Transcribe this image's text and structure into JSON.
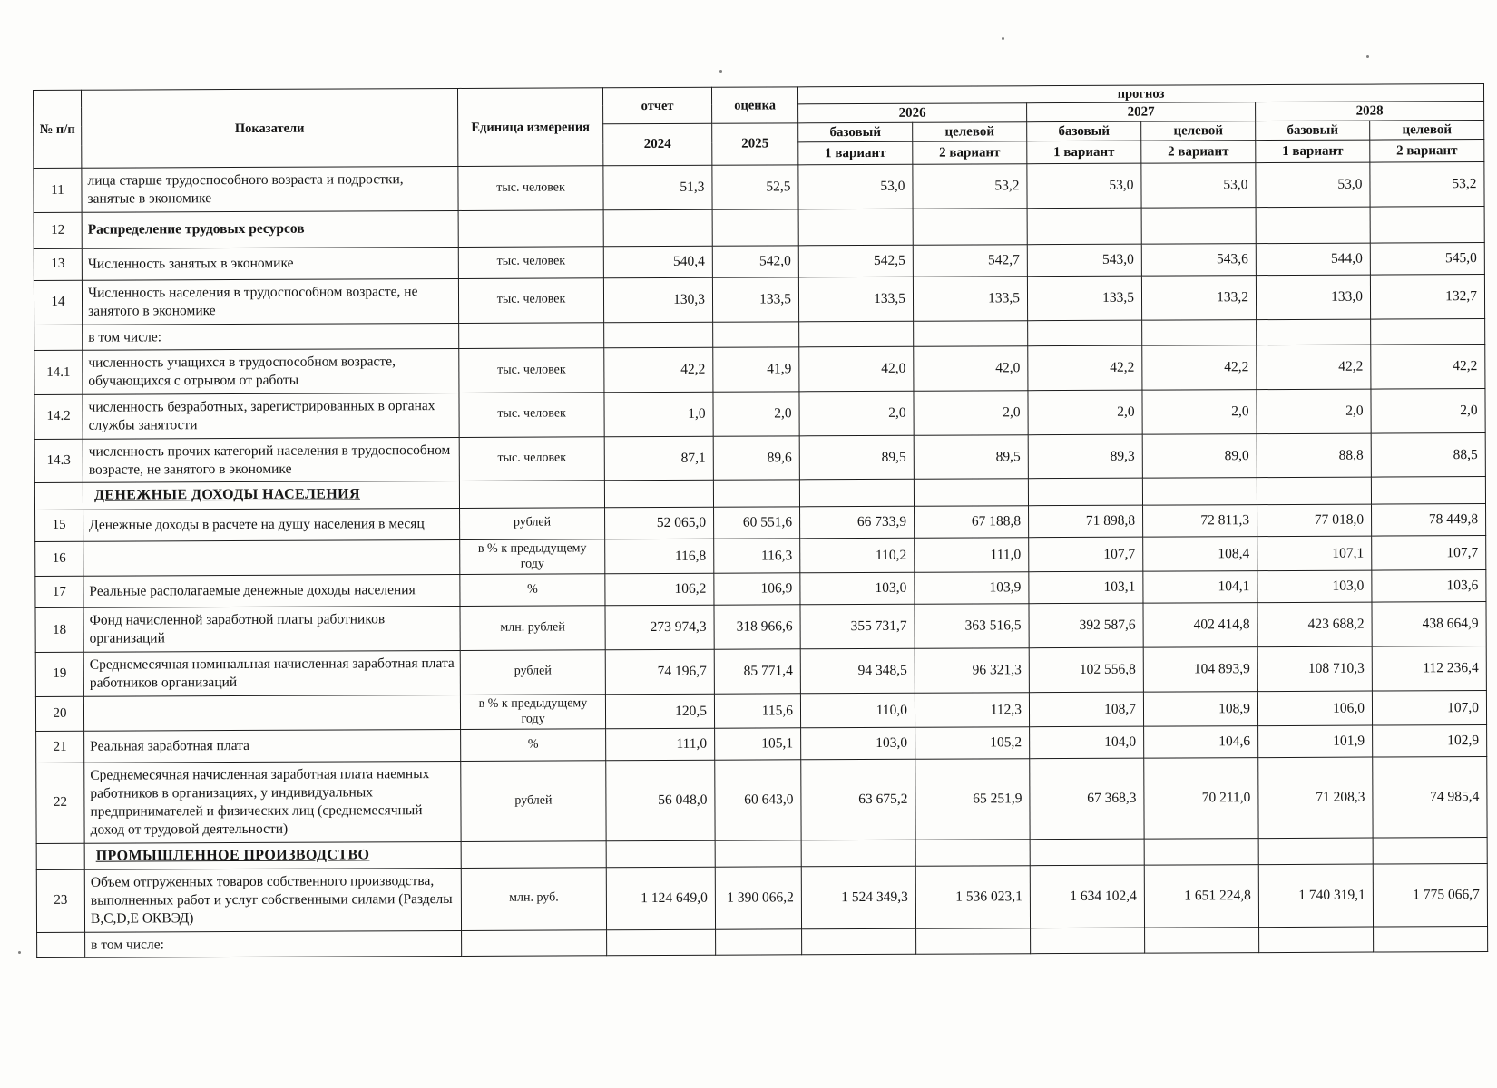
{
  "colors": {
    "border": "#1c1c1c",
    "text": "#161616",
    "paper": "#fdfdfb"
  },
  "table": {
    "header": {
      "num": "№ п/п",
      "indicators": "Показатели",
      "unit": "Единица измерения",
      "report": "отчет",
      "estimate": "оценка",
      "year_report": "2024",
      "year_estimate": "2025",
      "forecast": "прогноз",
      "year1": "2026",
      "year2": "2027",
      "year3": "2028",
      "base": "базовый",
      "target": "целевой",
      "v1": "1 вариант",
      "v2": "2 вариант"
    },
    "rows": [
      {
        "num": "11",
        "type": "data",
        "label": "лица старше трудоспособного возраста и подростки, занятые в экономике",
        "unit": "тыс. человек",
        "values": [
          "51,3",
          "52,5",
          "53,0",
          "53,2",
          "53,0",
          "53,0",
          "53,0",
          "53,2"
        ]
      },
      {
        "num": "12",
        "type": "group",
        "label": "Распределение трудовых ресурсов",
        "unit": "",
        "values": []
      },
      {
        "num": "13",
        "type": "data",
        "label": "Численность занятых в экономике",
        "unit": "тыс. человек",
        "values": [
          "540,4",
          "542,0",
          "542,5",
          "542,7",
          "543,0",
          "543,6",
          "544,0",
          "545,0"
        ]
      },
      {
        "num": "14",
        "type": "data",
        "label": "Численность населения в трудоспособном возрасте, не занятого в экономике",
        "unit": "тыс. человек",
        "values": [
          "130,3",
          "133,5",
          "133,5",
          "133,5",
          "133,5",
          "133,2",
          "133,0",
          "132,7"
        ]
      },
      {
        "num": "",
        "type": "note",
        "label": "в том числе:",
        "unit": "",
        "values": []
      },
      {
        "num": "14.1",
        "type": "data",
        "label": "численность учащихся в трудоспособном возрасте, обучающихся с отрывом от работы",
        "unit": "тыс. человек",
        "values": [
          "42,2",
          "41,9",
          "42,0",
          "42,0",
          "42,2",
          "42,2",
          "42,2",
          "42,2"
        ]
      },
      {
        "num": "14.2",
        "type": "data",
        "label": "численность безработных, зарегистрированных в органах службы занятости",
        "unit": "тыс. человек",
        "values": [
          "1,0",
          "2,0",
          "2,0",
          "2,0",
          "2,0",
          "2,0",
          "2,0",
          "2,0"
        ]
      },
      {
        "num": "14.3",
        "type": "data",
        "label": "численность прочих категорий населения в трудоспособном возрасте, не занятого в экономике",
        "unit": "тыс. человек",
        "values": [
          "87,1",
          "89,6",
          "89,5",
          "89,5",
          "89,3",
          "89,0",
          "88,8",
          "88,5"
        ]
      },
      {
        "num": "",
        "type": "section",
        "label": "ДЕНЕЖНЫЕ ДОХОДЫ НАСЕЛЕНИЯ",
        "unit": "",
        "values": []
      },
      {
        "num": "15",
        "type": "data",
        "label": "Денежные доходы в расчете на душу населения в месяц",
        "unit": "рублей",
        "values": [
          "52 065,0",
          "60 551,6",
          "66 733,9",
          "67 188,8",
          "71 898,8",
          "72 811,3",
          "77 018,0",
          "78 449,8"
        ]
      },
      {
        "num": "16",
        "type": "data",
        "label": "",
        "unit": "в % к предыдущему году",
        "values": [
          "116,8",
          "116,3",
          "110,2",
          "111,0",
          "107,7",
          "108,4",
          "107,1",
          "107,7"
        ]
      },
      {
        "num": "17",
        "type": "data",
        "label": "Реальные располагаемые денежные доходы населения",
        "unit": "%",
        "values": [
          "106,2",
          "106,9",
          "103,0",
          "103,9",
          "103,1",
          "104,1",
          "103,0",
          "103,6"
        ]
      },
      {
        "num": "18",
        "type": "data",
        "label": "Фонд начисленной заработной платы  работников организаций",
        "unit": "млн. рублей",
        "values": [
          "273 974,3",
          "318 966,6",
          "355 731,7",
          "363 516,5",
          "392 587,6",
          "402 414,8",
          "423 688,2",
          "438 664,9"
        ]
      },
      {
        "num": "19",
        "type": "data",
        "label": "Среднемесячная номинальная начисленная заработная плата работников организаций",
        "unit": "рублей",
        "values": [
          "74 196,7",
          "85 771,4",
          "94 348,5",
          "96 321,3",
          "102 556,8",
          "104 893,9",
          "108 710,3",
          "112 236,4"
        ]
      },
      {
        "num": "20",
        "type": "data",
        "label": "",
        "unit": "в % к предыдущему году",
        "values": [
          "120,5",
          "115,6",
          "110,0",
          "112,3",
          "108,7",
          "108,9",
          "106,0",
          "107,0"
        ]
      },
      {
        "num": "21",
        "type": "data",
        "label": "Реальная заработная плата",
        "unit": "%",
        "values": [
          "111,0",
          "105,1",
          "103,0",
          "105,2",
          "104,0",
          "104,6",
          "101,9",
          "102,9"
        ]
      },
      {
        "num": "22",
        "type": "data",
        "label": "Среднемесячная начисленная заработная плата наемных работников в организациях, у индивидуальных предпринимателей и физических лиц (среднемесячный доход от трудовой деятельности)",
        "unit": "рублей",
        "values": [
          "56 048,0",
          "60 643,0",
          "63 675,2",
          "65 251,9",
          "67 368,3",
          "70 211,0",
          "71 208,3",
          "74 985,4"
        ]
      },
      {
        "num": "",
        "type": "section",
        "label": "ПРОМЫШЛЕННОЕ ПРОИЗВОДСТВО",
        "unit": "",
        "values": []
      },
      {
        "num": "23",
        "type": "data",
        "label": "Объем отгруженных товаров собственного производства, выполненных работ и услуг собственными силами (Разделы B,C,D,E ОКВЭД)",
        "unit": "млн. руб.",
        "values": [
          "1 124 649,0",
          "1 390 066,2",
          "1 524 349,3",
          "1 536 023,1",
          "1 634 102,4",
          "1 651 224,8",
          "1 740 319,1",
          "1 775 066,7"
        ]
      },
      {
        "num": "",
        "type": "note",
        "label": "в том числе:",
        "unit": "",
        "values": []
      }
    ]
  }
}
